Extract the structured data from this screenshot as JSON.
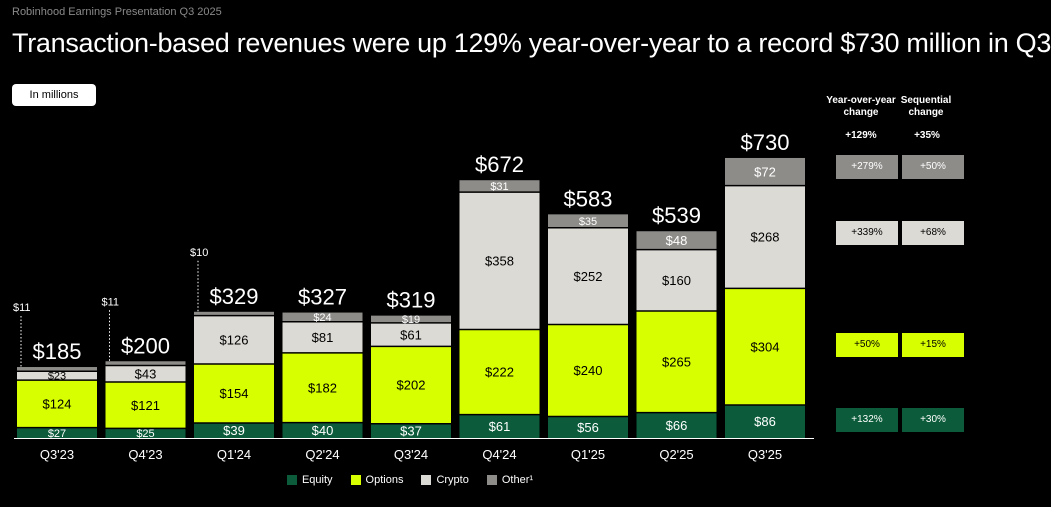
{
  "header": {
    "presentation": "Robinhood Earnings Presentation Q3 2025",
    "headline": "Transaction-based revenues were up 129% year-over-year to a record $730 million in Q3",
    "units_badge": "In millions"
  },
  "colors": {
    "Equity": "#0c5c3c",
    "Options": "#d7ff00",
    "Crypto": "#dcdad5",
    "Other": "#8e8c89",
    "background": "#000000"
  },
  "chart_data": {
    "type": "bar",
    "stacked": true,
    "categories": [
      "Q3'23",
      "Q4'23",
      "Q1'24",
      "Q2'24",
      "Q3'24",
      "Q4'24",
      "Q1'25",
      "Q2'25",
      "Q3'25"
    ],
    "series": [
      {
        "name": "Equity",
        "values": [
          27,
          25,
          39,
          40,
          37,
          61,
          56,
          66,
          86
        ]
      },
      {
        "name": "Options",
        "values": [
          124,
          121,
          154,
          182,
          202,
          222,
          240,
          265,
          304
        ]
      },
      {
        "name": "Crypto",
        "values": [
          23,
          43,
          126,
          81,
          61,
          358,
          252,
          160,
          268
        ]
      },
      {
        "name": "Other¹",
        "values": [
          11,
          11,
          10,
          24,
          19,
          31,
          35,
          48,
          72
        ]
      }
    ],
    "data_labels": [
      [
        "$27",
        "$124",
        "$23",
        "$11"
      ],
      [
        "$25",
        "$121",
        "$43",
        "$11"
      ],
      [
        "$39",
        "$154",
        "$126",
        "$10"
      ],
      [
        "$40",
        "$182",
        "$81",
        "$24"
      ],
      [
        "$37",
        "$202",
        "$61",
        "$19"
      ],
      [
        "$61",
        "$222",
        "$358",
        "$31"
      ],
      [
        "$56",
        "$240",
        "$252",
        "$35"
      ],
      [
        "$66",
        "$265",
        "$160",
        "$48"
      ],
      [
        "$86",
        "$304",
        "$268",
        "$72"
      ]
    ],
    "totals": [
      185,
      200,
      329,
      327,
      319,
      672,
      583,
      539,
      730
    ],
    "total_labels": [
      "$185",
      "$200",
      "$329",
      "$327",
      "$319",
      "$672",
      "$583",
      "$539",
      "$730"
    ],
    "ylim": [
      0,
      730
    ],
    "legend": "bottom",
    "grid": false
  },
  "change_table": {
    "yoy_header": "Year-over-year change",
    "seq_header": "Sequential change",
    "total_yoy": "+129%",
    "total_seq": "+35%",
    "rows": [
      {
        "series": "Other",
        "yoy": "+279%",
        "seq": "+50%"
      },
      {
        "series": "Crypto",
        "yoy": "+339%",
        "seq": "+68%"
      },
      {
        "series": "Options",
        "yoy": "+50%",
        "seq": "+15%"
      },
      {
        "series": "Equity",
        "yoy": "+132%",
        "seq": "+30%"
      }
    ]
  }
}
